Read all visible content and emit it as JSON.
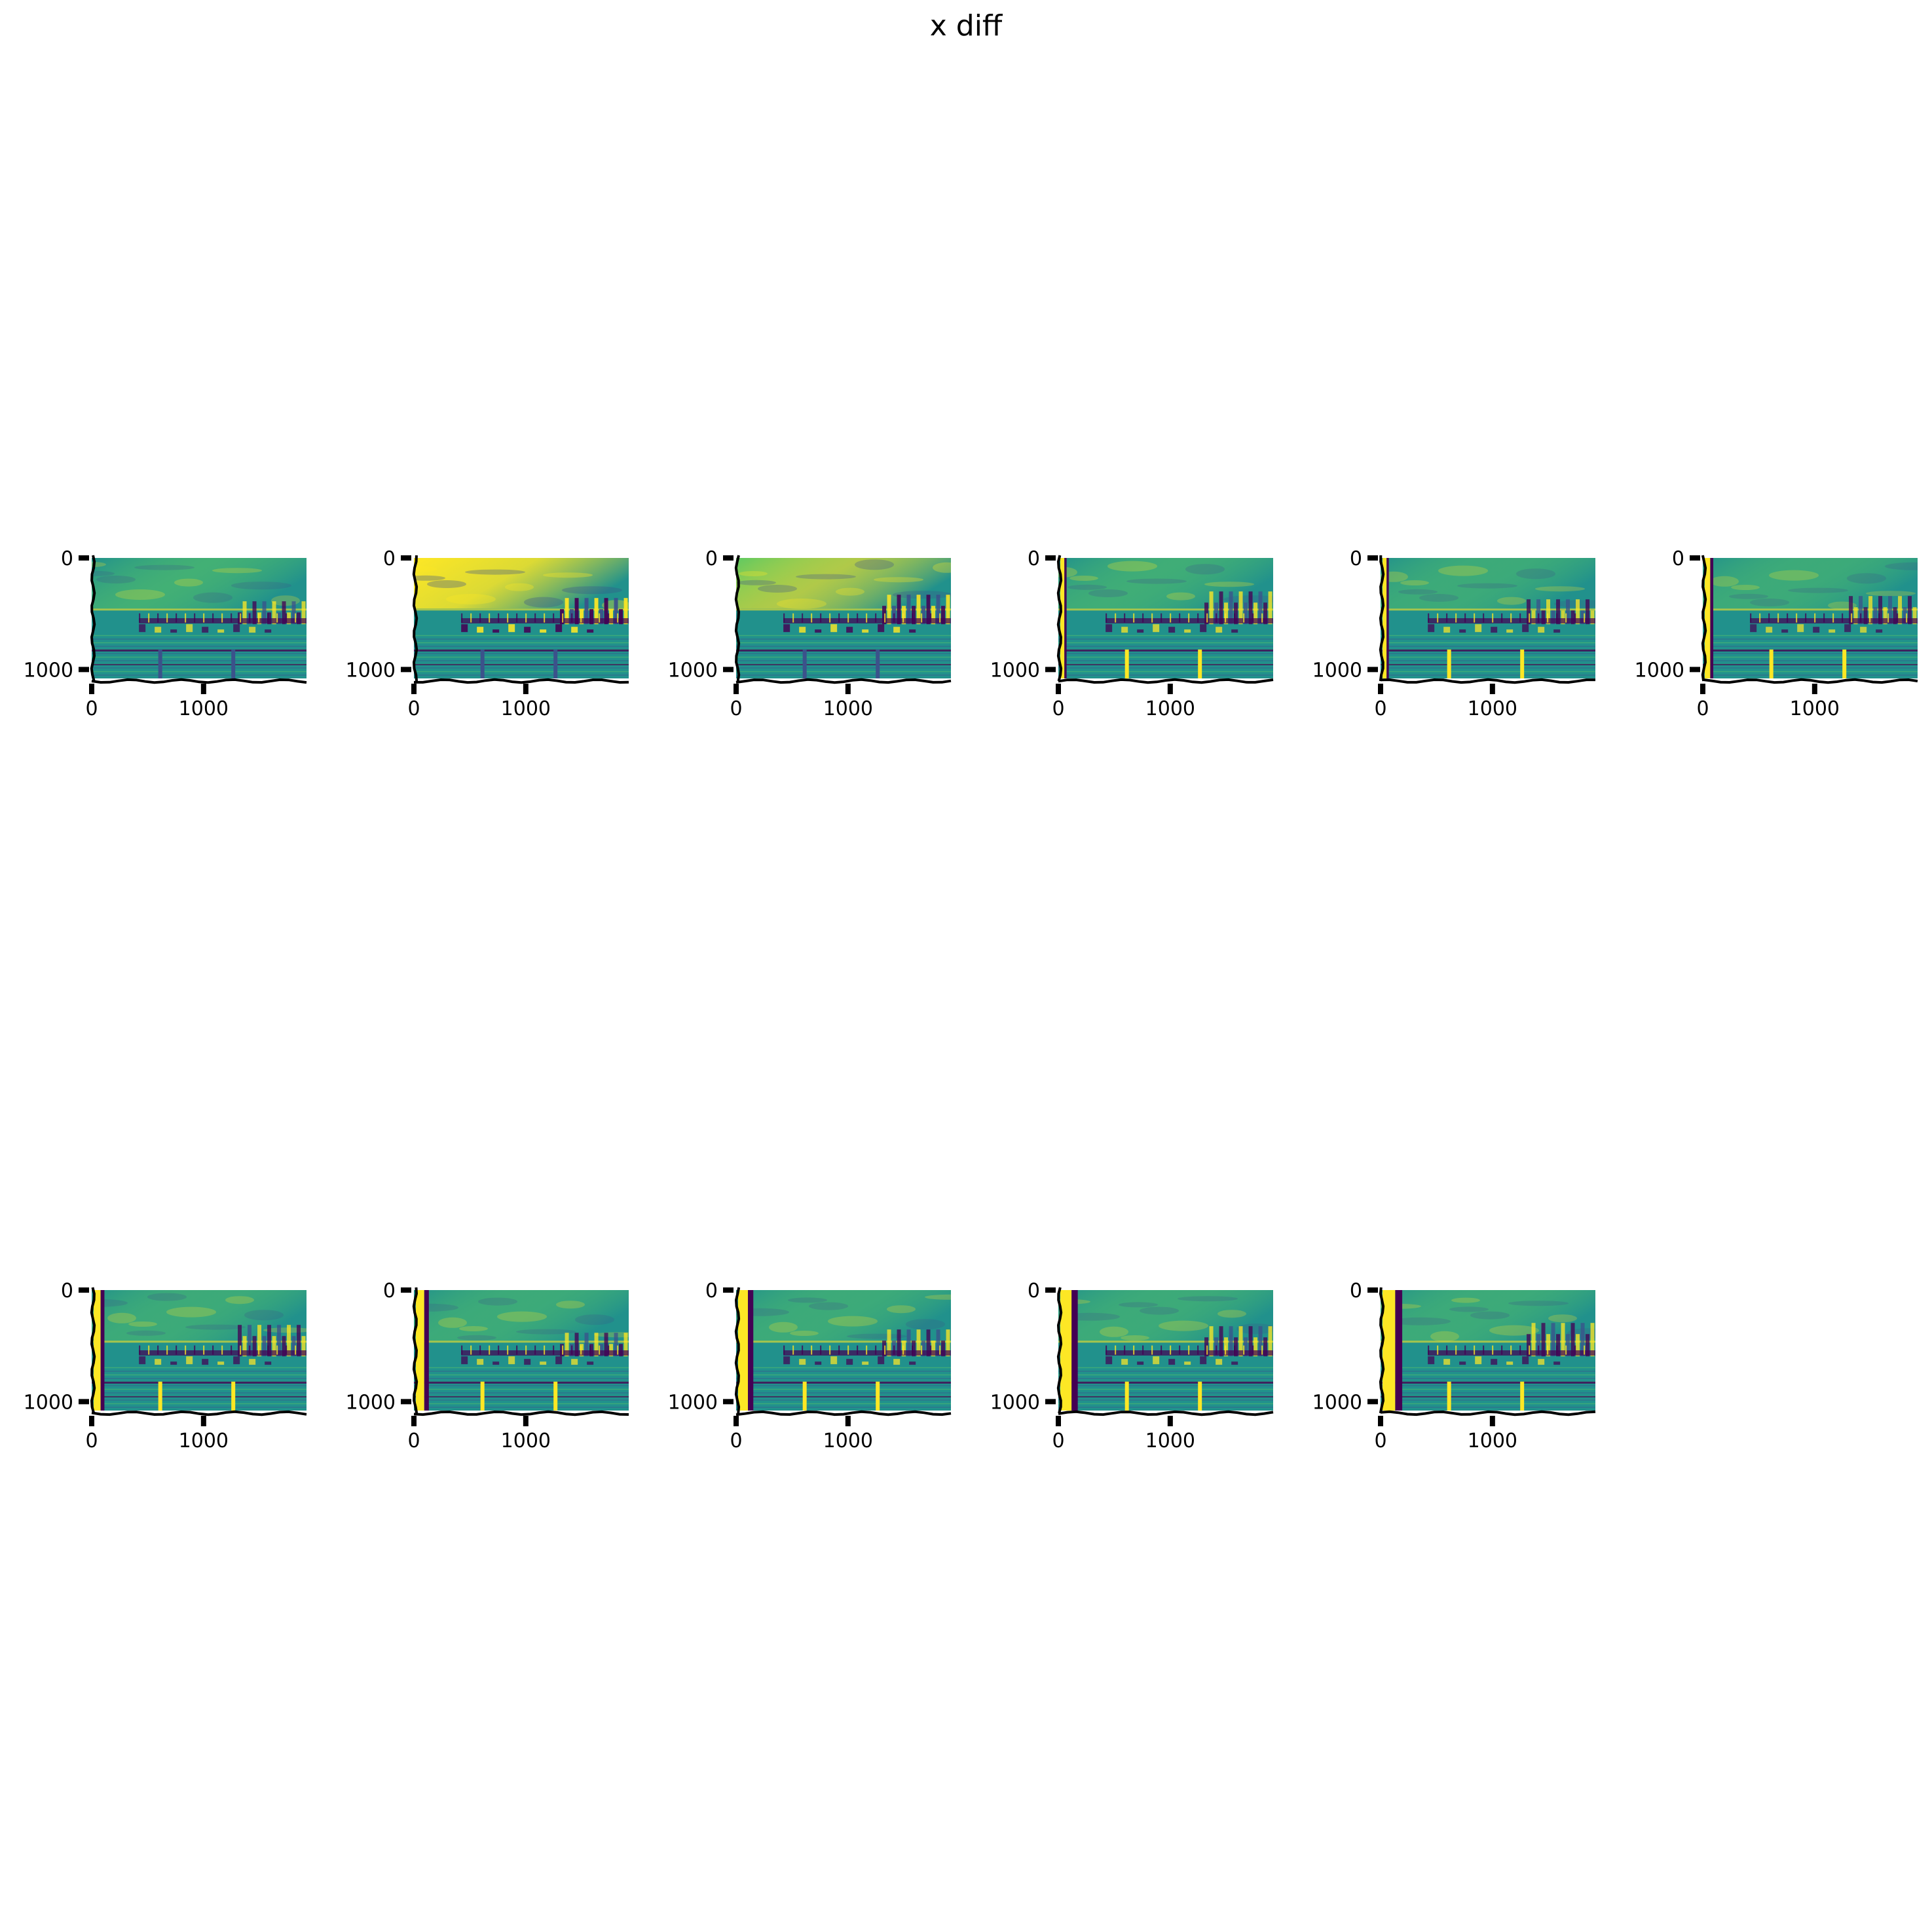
{
  "title": "x diff",
  "chart_data": {
    "type": "image-grid",
    "title": "x diff",
    "colormap": "viridis",
    "colormap_colors": [
      "#440154",
      "#3b528b",
      "#21918c",
      "#5ec962",
      "#fde725"
    ],
    "background": "#ffffff",
    "layout": {
      "rows": 2,
      "cols": 6,
      "panels": 11
    },
    "image_extent": {
      "x": [
        0,
        1920
      ],
      "y": [
        1080,
        0
      ]
    },
    "xticks": [
      0,
      1000
    ],
    "yticks": [
      0,
      1000
    ],
    "xtick_labels": [
      "0",
      "1000"
    ],
    "ytick_labels": [
      "0",
      "1000"
    ],
    "grid": false,
    "panels": [
      {
        "index": 0,
        "row": 0,
        "col": 0,
        "left_band": 0,
        "contrast": 0.55,
        "sky": 0.55
      },
      {
        "index": 1,
        "row": 0,
        "col": 1,
        "left_band": 0,
        "contrast": 0.95,
        "sky": 0.85
      },
      {
        "index": 2,
        "row": 0,
        "col": 2,
        "left_band": 0,
        "contrast": 0.8,
        "sky": 0.65
      },
      {
        "index": 3,
        "row": 0,
        "col": 3,
        "left_band": 1,
        "contrast": 0.6,
        "sky": 0.5
      },
      {
        "index": 4,
        "row": 0,
        "col": 4,
        "left_band": 1,
        "contrast": 0.55,
        "sky": 0.45
      },
      {
        "index": 5,
        "row": 0,
        "col": 5,
        "left_band": 2,
        "contrast": 0.5,
        "sky": 0.45
      },
      {
        "index": 6,
        "row": 1,
        "col": 0,
        "left_band": 3,
        "contrast": 0.55,
        "sky": 0.45
      },
      {
        "index": 7,
        "row": 1,
        "col": 1,
        "left_band": 4,
        "contrast": 0.55,
        "sky": 0.45
      },
      {
        "index": 8,
        "row": 1,
        "col": 2,
        "left_band": 5,
        "contrast": 0.55,
        "sky": 0.45
      },
      {
        "index": 9,
        "row": 1,
        "col": 3,
        "left_band": 6,
        "contrast": 0.55,
        "sky": 0.45
      },
      {
        "index": 10,
        "row": 1,
        "col": 4,
        "left_band": 7,
        "contrast": 0.55,
        "sky": 0.45
      }
    ]
  }
}
